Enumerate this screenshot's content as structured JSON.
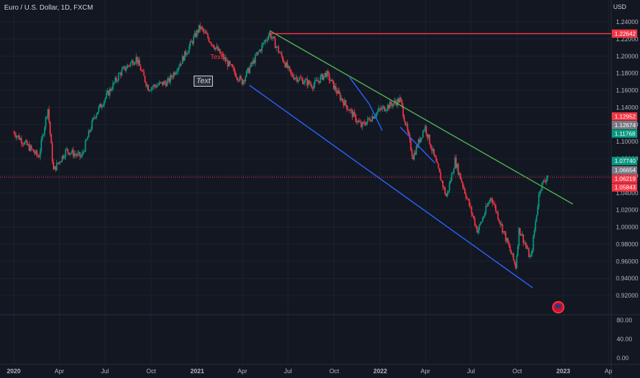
{
  "header": {
    "title": "Euro / U.S. Dollar, 1D, FXCM",
    "currency": "USD"
  },
  "annotations": {
    "text_label_red": "Text",
    "text_label_box": "Text"
  },
  "chart_data": {
    "type": "candlestick",
    "title": "Euro / U.S. Dollar, 1D, FXCM",
    "ylim": [
      0.909,
      1.253
    ],
    "y_ticks": [
      "1.24000",
      "1.22000",
      "1.20000",
      "1.18000",
      "1.16000",
      "1.14000",
      "1.12000",
      "1.10000",
      "1.08000",
      "1.06000",
      "1.04000",
      "1.02000",
      "1.00000",
      "0.98000",
      "0.96000",
      "0.94000",
      "0.92000"
    ],
    "y_tick_values": [
      1.24,
      1.22,
      1.2,
      1.18,
      1.16,
      1.14,
      1.12,
      1.1,
      1.08,
      1.06,
      1.04,
      1.02,
      1.0,
      0.98,
      0.96,
      0.94,
      0.92
    ],
    "x_ticks": [
      "2020",
      "Apr",
      "Jul",
      "Oct",
      "2021",
      "Apr",
      "Jul",
      "Oct",
      "2022",
      "Apr",
      "Jul",
      "Oct",
      "2023",
      "Ap"
    ],
    "x_tick_dates": [
      "2020-01-01",
      "2020-04-01",
      "2020-07-01",
      "2020-10-01",
      "2021-01-01",
      "2021-04-01",
      "2021-07-01",
      "2021-10-01",
      "2022-01-01",
      "2022-04-01",
      "2022-07-01",
      "2022-10-01",
      "2023-01-01",
      "2023-04-01"
    ],
    "price_path": [
      [
        "2020-01-01",
        1.111
      ],
      [
        "2020-02-20",
        1.082
      ],
      [
        "2020-03-09",
        1.14
      ],
      [
        "2020-03-20",
        1.066
      ],
      [
        "2020-04-15",
        1.09
      ],
      [
        "2020-05-15",
        1.082
      ],
      [
        "2020-06-10",
        1.13
      ],
      [
        "2020-07-31",
        1.18
      ],
      [
        "2020-09-01",
        1.198
      ],
      [
        "2020-09-25",
        1.163
      ],
      [
        "2020-11-04",
        1.17
      ],
      [
        "2020-12-01",
        1.195
      ],
      [
        "2021-01-06",
        1.234
      ],
      [
        "2021-03-31",
        1.17
      ],
      [
        "2021-05-25",
        1.227
      ],
      [
        "2021-07-07",
        1.178
      ],
      [
        "2021-08-20",
        1.166
      ],
      [
        "2021-09-15",
        1.18
      ],
      [
        "2021-10-12",
        1.153
      ],
      [
        "2021-11-24",
        1.118
      ],
      [
        "2021-12-31",
        1.137
      ],
      [
        "2022-02-10",
        1.149
      ],
      [
        "2022-03-07",
        1.082
      ],
      [
        "2022-03-31",
        1.118
      ],
      [
        "2022-05-13",
        1.035
      ],
      [
        "2022-05-30",
        1.078
      ],
      [
        "2022-07-14",
        0.995
      ],
      [
        "2022-08-10",
        1.036
      ],
      [
        "2022-09-28",
        0.954
      ],
      [
        "2022-10-05",
        0.999
      ],
      [
        "2022-10-28",
        0.962
      ],
      [
        "2022-11-15",
        1.045
      ],
      [
        "2022-12-01",
        1.061
      ]
    ],
    "price_lines": [
      {
        "value": 1.22642,
        "label": "1.22642",
        "color": "#f23645"
      },
      {
        "value": 1.05843,
        "label": "1.05843",
        "color": "#f23645"
      }
    ],
    "price_labels": [
      {
        "value": 1.12952,
        "label": "1.12952",
        "color": "#f23645"
      },
      {
        "value": 1.12674,
        "label": "1.12674",
        "color": "#787b86"
      },
      {
        "value": 1.11768,
        "label": "1.11768",
        "color": "#089981"
      },
      {
        "value": 1.0774,
        "label": "1.07740",
        "color": "#089981"
      },
      {
        "value": 1.06654,
        "label": "1.06654",
        "color": "#787b86"
      },
      {
        "value": 1.06219,
        "label": "1.06219",
        "color": "#f23645"
      },
      {
        "value": 1.05843,
        "label": "1.05843",
        "color": "#f23645"
      }
    ],
    "trendlines": [
      {
        "name": "resistance",
        "color": "#4caf50",
        "from": [
          "2021-05-25",
          1.23
        ],
        "to": [
          "2023-01-20",
          1.027
        ]
      },
      {
        "name": "support",
        "color": "#2962ff",
        "from": [
          "2021-04-15",
          1.166
        ],
        "to": [
          "2022-11-01",
          0.929
        ]
      },
      {
        "name": "leg-1",
        "color": "#2962ff",
        "from": [
          "2021-11-01",
          1.175
        ],
        "to": [
          "2021-12-10",
          1.144
        ]
      },
      {
        "name": "leg-2",
        "color": "#2962ff",
        "from": [
          "2021-12-10",
          1.144
        ],
        "to": [
          "2022-01-05",
          1.113
        ]
      },
      {
        "name": "leg-3",
        "color": "#2962ff",
        "from": [
          "2022-02-10",
          1.117
        ],
        "to": [
          "2022-04-20",
          1.075
        ]
      }
    ],
    "indicator": {
      "y_ticks": [
        "80.00",
        "40.00",
        "0.00"
      ],
      "y_tick_values": [
        80,
        40,
        0
      ],
      "ylim": [
        -8,
        100
      ]
    },
    "colors": {
      "up": "#089981",
      "down": "#f23645",
      "background": "#131722",
      "grid": "#1e222d"
    }
  }
}
